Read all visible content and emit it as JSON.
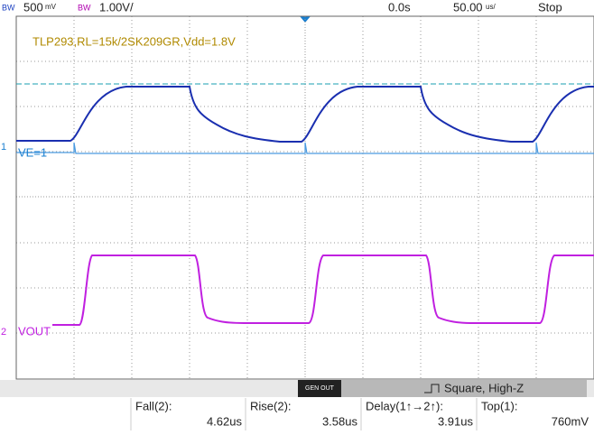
{
  "top_bar": {
    "ch1_bw": "BW",
    "ch1_scale": "500",
    "ch1_unit": "mV",
    "ch2_bw": "BW",
    "ch2_scale": "1.00V/",
    "time_offset": "0.0s",
    "time_scale": "50.00",
    "time_unit": "us/",
    "run_state": "Stop"
  },
  "annotation": "TLP293,RL=15k/2SK209GR,Vdd=1.8V",
  "channels": [
    {
      "number": "1",
      "label": "VE=1"
    },
    {
      "number": "2",
      "label": "VOUT"
    }
  ],
  "generator": {
    "button": "GEN OUT",
    "mode": "Square, High-Z"
  },
  "measurements": [
    {
      "name": "Fall(2):",
      "value": "4.62us"
    },
    {
      "name": "Rise(2):",
      "value": "3.58us"
    },
    {
      "name": "Delay(1↑→2↑):",
      "value": "3.91us"
    },
    {
      "name": "Top(1):",
      "value": "760mV"
    }
  ]
}
